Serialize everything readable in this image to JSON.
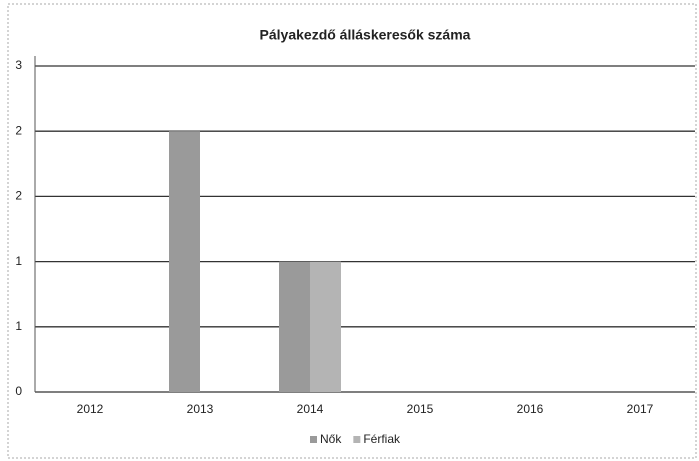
{
  "chart_data": {
    "type": "bar",
    "title": "Pályakezdő álláskeresők száma",
    "categories": [
      "2012",
      "2013",
      "2014",
      "2015",
      "2016",
      "2017"
    ],
    "series": [
      {
        "name": "Nők",
        "color": "#9a9a9a",
        "values": [
          0,
          2,
          1,
          0,
          0,
          0
        ]
      },
      {
        "name": "Férfiak",
        "color": "#b4b4b4",
        "values": [
          0,
          0,
          1,
          0,
          0,
          0
        ]
      }
    ],
    "ylim": [
      0,
      2.5
    ],
    "yticks": [
      0,
      {
        "value": 0.5,
        "label": "1"
      },
      1,
      {
        "value": 1.5,
        "label": "2"
      },
      2,
      {
        "value": 2.5,
        "label": "3"
      }
    ],
    "grid": true,
    "legend": "bottom"
  }
}
